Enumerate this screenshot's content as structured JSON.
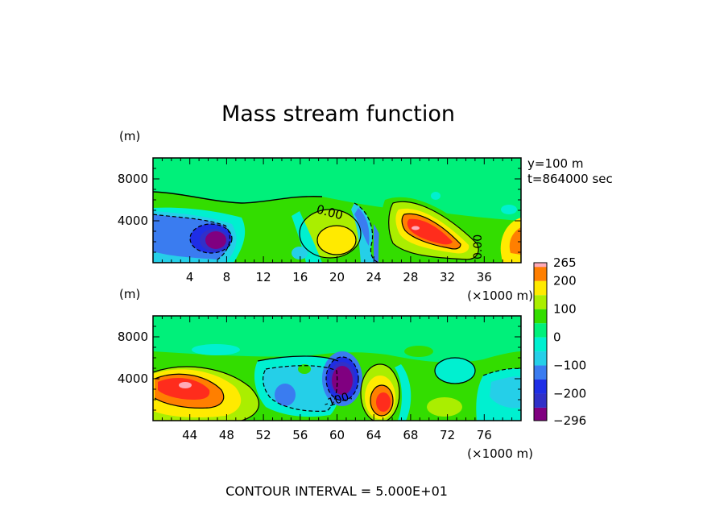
{
  "title": "Mass stream function",
  "annotation": {
    "y_line": "y=100  m",
    "t_line": "t=864000 sec"
  },
  "footer": "CONTOUR INTERVAL = 5.000E+01",
  "colors": {
    "level_-296": "#800080",
    "level_-250": "#3030c8",
    "level_-200": "#1e2ee6",
    "level_-150": "#3a7cf0",
    "level_-100": "#25cfe8",
    "level_-50": "#00f0d0",
    "level_0": "#00f07a",
    "level_50": "#33dd00",
    "level_100": "#aaee00",
    "level_150": "#ffea00",
    "level_200": "#ff7f00",
    "level_250": "#ff2c1c",
    "level_265": "#ffaab8"
  },
  "chart_data": [
    {
      "type": "heatmap",
      "panel": "upper",
      "yunit": "(m)",
      "xunit": "(×1000 m)",
      "xlim": [
        0,
        40
      ],
      "ylim": [
        0,
        10000
      ],
      "xticks": [
        "4",
        "8",
        "12",
        "16",
        "20",
        "24",
        "28",
        "32",
        "36"
      ],
      "yticks": [
        "4000",
        "8000"
      ],
      "contour_labels": [
        "0.00",
        "0.00"
      ],
      "features": [
        {
          "kind": "min",
          "x": 7,
          "y": 2500,
          "value": -280
        },
        {
          "kind": "max",
          "x": 30,
          "y": 3200,
          "value": 260
        },
        {
          "kind": "max",
          "x": 20.5,
          "y": 2300,
          "value": 150
        },
        {
          "kind": "max",
          "x": 39.5,
          "y": 2000,
          "value": 200
        }
      ]
    },
    {
      "type": "heatmap",
      "panel": "lower",
      "yunit": "(m)",
      "xunit": "(×1000 m)",
      "xlim": [
        40,
        80
      ],
      "ylim": [
        0,
        10000
      ],
      "xticks": [
        "44",
        "48",
        "52",
        "56",
        "60",
        "64",
        "68",
        "72",
        "76"
      ],
      "yticks": [
        "4000",
        "8000"
      ],
      "contour_labels": [
        "-100."
      ],
      "features": [
        {
          "kind": "max",
          "x": 43.5,
          "y": 3500,
          "value": 265
        },
        {
          "kind": "min",
          "x": 60.5,
          "y": 3900,
          "value": -296
        },
        {
          "kind": "max",
          "x": 64.5,
          "y": 1800,
          "value": 230
        },
        {
          "kind": "min",
          "x": 53.5,
          "y": 2700,
          "value": -150
        }
      ]
    }
  ],
  "colorbar": {
    "levels": [
      -296,
      -250,
      -200,
      -150,
      -100,
      -50,
      0,
      50,
      100,
      150,
      200,
      250,
      265
    ],
    "tick_labels": [
      "265",
      "200",
      "100",
      "0",
      "−100",
      "−200",
      "−296"
    ]
  }
}
